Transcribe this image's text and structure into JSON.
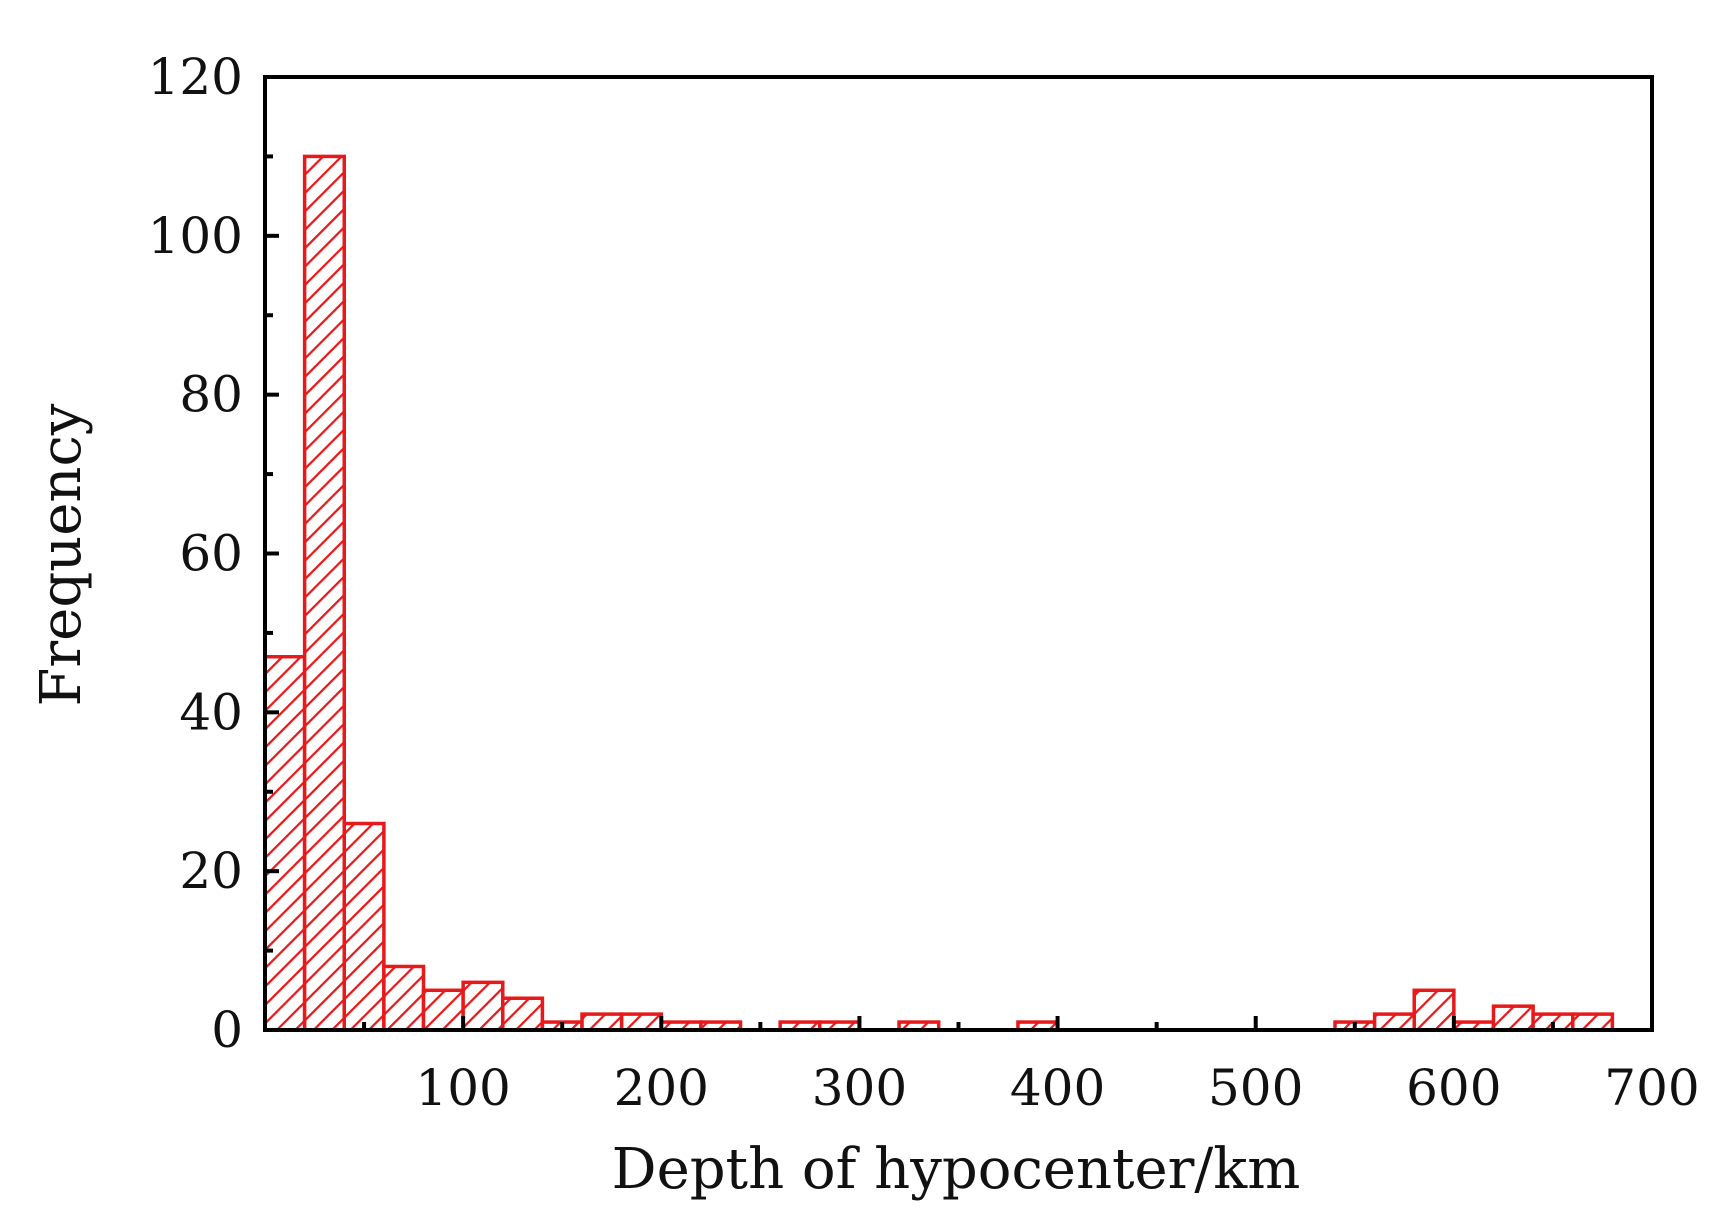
{
  "chart_data": {
    "type": "bar",
    "xlabel": "Depth of hypocenter/km",
    "ylabel": "Frequency",
    "xlim": [
      0,
      700
    ],
    "ylim": [
      0,
      120
    ],
    "xticks": [
      100,
      200,
      300,
      400,
      500,
      600,
      700
    ],
    "yticks": [
      0,
      20,
      40,
      60,
      80,
      100,
      120
    ],
    "bin_width": 20,
    "bins": [
      {
        "x0": 0,
        "x1": 20,
        "value": 47
      },
      {
        "x0": 20,
        "x1": 40,
        "value": 110
      },
      {
        "x0": 40,
        "x1": 60,
        "value": 26
      },
      {
        "x0": 60,
        "x1": 80,
        "value": 8
      },
      {
        "x0": 80,
        "x1": 100,
        "value": 5
      },
      {
        "x0": 100,
        "x1": 120,
        "value": 6
      },
      {
        "x0": 120,
        "x1": 140,
        "value": 4
      },
      {
        "x0": 140,
        "x1": 160,
        "value": 1
      },
      {
        "x0": 160,
        "x1": 180,
        "value": 2
      },
      {
        "x0": 180,
        "x1": 200,
        "value": 2
      },
      {
        "x0": 200,
        "x1": 220,
        "value": 1
      },
      {
        "x0": 220,
        "x1": 240,
        "value": 1
      },
      {
        "x0": 260,
        "x1": 280,
        "value": 1
      },
      {
        "x0": 280,
        "x1": 300,
        "value": 1
      },
      {
        "x0": 320,
        "x1": 340,
        "value": 1
      },
      {
        "x0": 380,
        "x1": 400,
        "value": 1
      },
      {
        "x0": 540,
        "x1": 560,
        "value": 1
      },
      {
        "x0": 560,
        "x1": 580,
        "value": 2
      },
      {
        "x0": 580,
        "x1": 600,
        "value": 5
      },
      {
        "x0": 600,
        "x1": 620,
        "value": 1
      },
      {
        "x0": 620,
        "x1": 640,
        "value": 3
      },
      {
        "x0": 640,
        "x1": 660,
        "value": 2
      },
      {
        "x0": 660,
        "x1": 680,
        "value": 2
      }
    ],
    "grid": false,
    "bar_color": "#e8191a",
    "bar_fill": "diagonal-hatch",
    "axis_color": "#000000"
  }
}
